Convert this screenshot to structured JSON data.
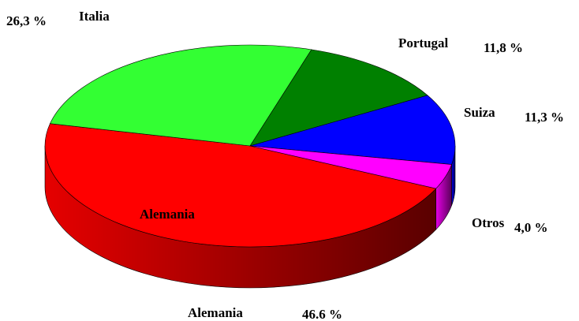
{
  "chart_data": {
    "type": "pie",
    "categories": [
      "Alemania",
      "Italia",
      "Portugal",
      "Suiza",
      "Otros"
    ],
    "values": [
      46.6,
      26.3,
      11.8,
      11.3,
      4.0
    ],
    "value_labels": [
      "46.6 %",
      "26,3 %",
      "11,8 %",
      "11,3 %",
      "4,0 %"
    ],
    "colors": [
      "#ff0000",
      "#33ff33",
      "#008000",
      "#0000ff",
      "#ff00ff"
    ]
  }
}
